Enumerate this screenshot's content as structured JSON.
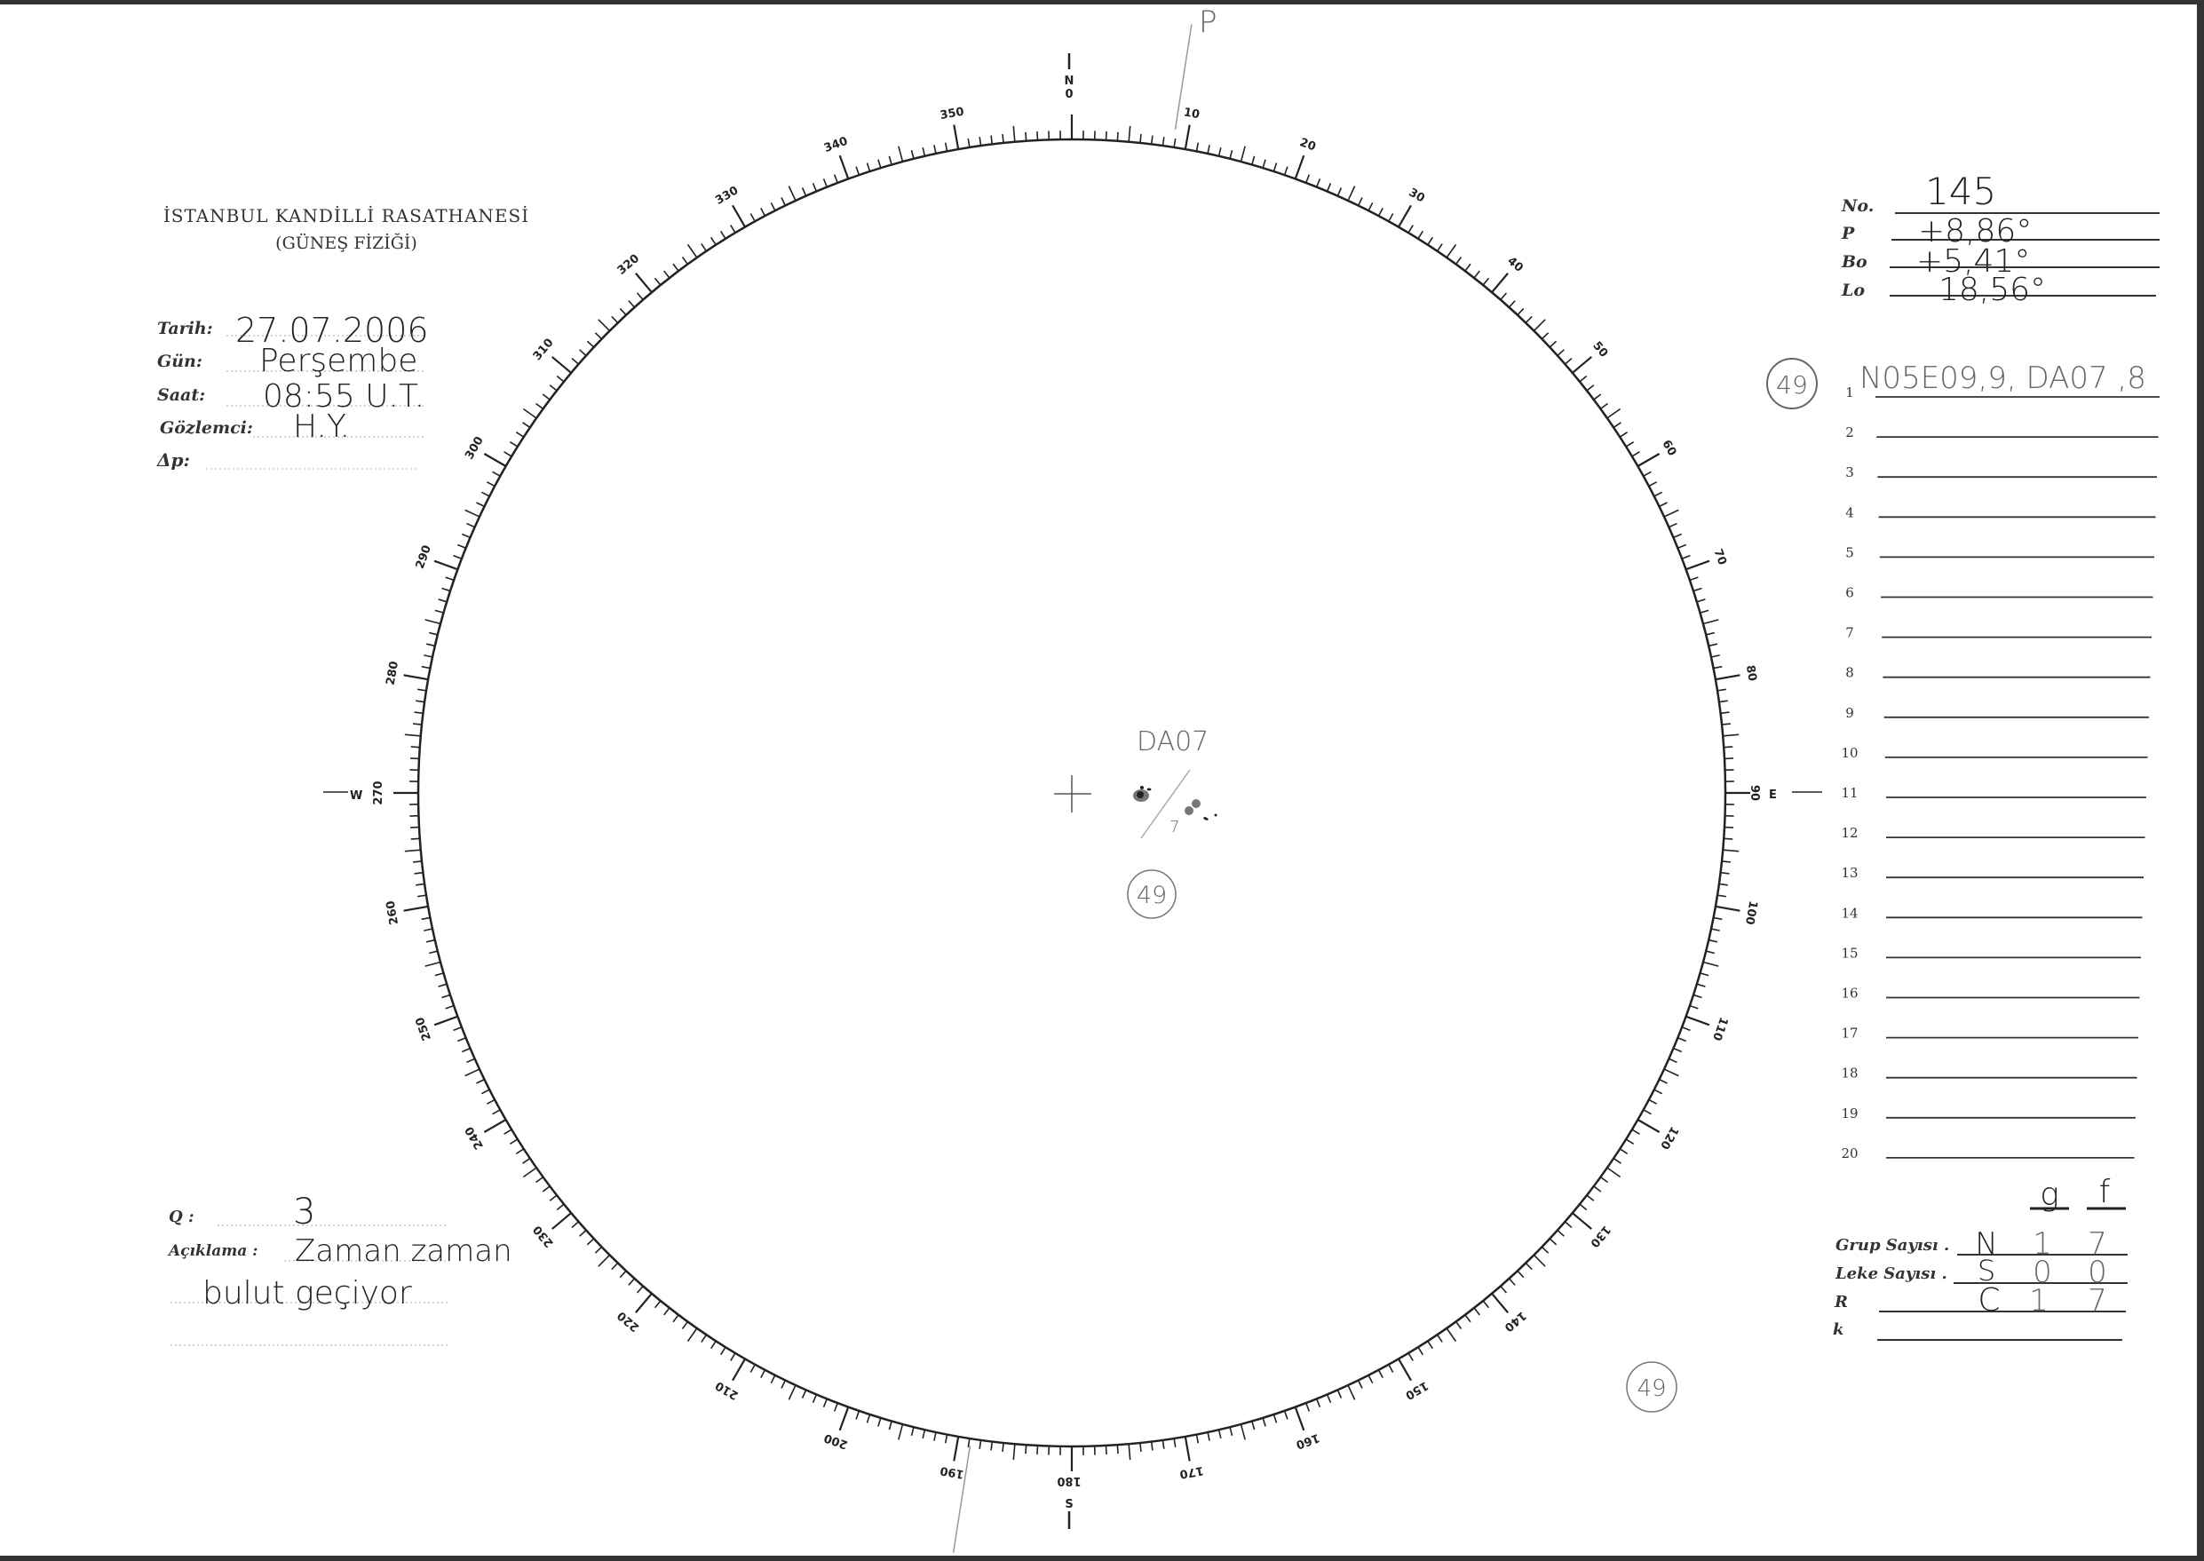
{
  "header": {
    "institution": "İSTANBUL KANDİLLİ RASATHANESİ",
    "department": "(GÜNEŞ FİZİĞİ)"
  },
  "observation": {
    "date_label": "Tarih:",
    "date_value": "27.07.2006",
    "day_label": "Gün:",
    "day_value": "Perşembe",
    "time_label": "Saat:",
    "time_value": "08:55 U.T.",
    "observer_label": "Gözlemci:",
    "observer_value": "H.Y.",
    "dp_label": "Δp:",
    "dp_value": ""
  },
  "quality": {
    "q_label": "Q :",
    "q_value": "3",
    "note_label": "Açıklama :",
    "note_line1": "Zaman zaman",
    "note_line2": "bulut geçiyor"
  },
  "ephemeris": {
    "no_label": "No.",
    "no_value": "145",
    "p_label": "P",
    "p_value": "+8,86°",
    "bo_label": "Bo",
    "bo_value": "+5,41°",
    "lo_label": "Lo",
    "lo_value": "18,56°"
  },
  "groups": {
    "circled_number": "49",
    "rows": [
      {
        "n": "1",
        "text": "N05E09,9, DA07 ,8"
      },
      {
        "n": "2",
        "text": ""
      },
      {
        "n": "3",
        "text": ""
      },
      {
        "n": "4",
        "text": ""
      },
      {
        "n": "5",
        "text": ""
      },
      {
        "n": "6",
        "text": ""
      },
      {
        "n": "7",
        "text": ""
      },
      {
        "n": "8",
        "text": ""
      },
      {
        "n": "9",
        "text": ""
      },
      {
        "n": "10",
        "text": ""
      },
      {
        "n": "11",
        "text": ""
      },
      {
        "n": "12",
        "text": ""
      },
      {
        "n": "13",
        "text": ""
      },
      {
        "n": "14",
        "text": ""
      },
      {
        "n": "15",
        "text": ""
      },
      {
        "n": "16",
        "text": ""
      },
      {
        "n": "17",
        "text": ""
      },
      {
        "n": "18",
        "text": ""
      },
      {
        "n": "19",
        "text": ""
      },
      {
        "n": "20",
        "text": ""
      }
    ]
  },
  "counts": {
    "col_g": "g",
    "col_f": "f",
    "group_label": "Grup Sayısı .",
    "group_hemi": "N",
    "group_g": "1",
    "group_f": "7",
    "spot_label": "Leke Sayısı .",
    "spot_hemi": "S",
    "spot_g": "0",
    "spot_f": "0",
    "r_label": "R",
    "r_hemi": "C",
    "r_g": "1",
    "r_f": "7",
    "k_label": "k"
  },
  "disk": {
    "north": "N",
    "east": "E",
    "south": "S",
    "west": "W",
    "p_mark": "P",
    "p_angle_deg": 8.86,
    "scale_labels": [
      "0",
      "10",
      "20",
      "30",
      "40",
      "50",
      "60",
      "70",
      "80",
      "90",
      "100",
      "110",
      "120",
      "130",
      "140",
      "150",
      "160",
      "170",
      "180",
      "190",
      "200",
      "210",
      "220",
      "230",
      "240",
      "250",
      "260",
      "270",
      "280",
      "290",
      "300",
      "310",
      "320",
      "330",
      "340",
      "350"
    ],
    "group_label": "DA07",
    "group_spot_count": "7",
    "group_number_center": "49",
    "group_number_corner": "49"
  }
}
